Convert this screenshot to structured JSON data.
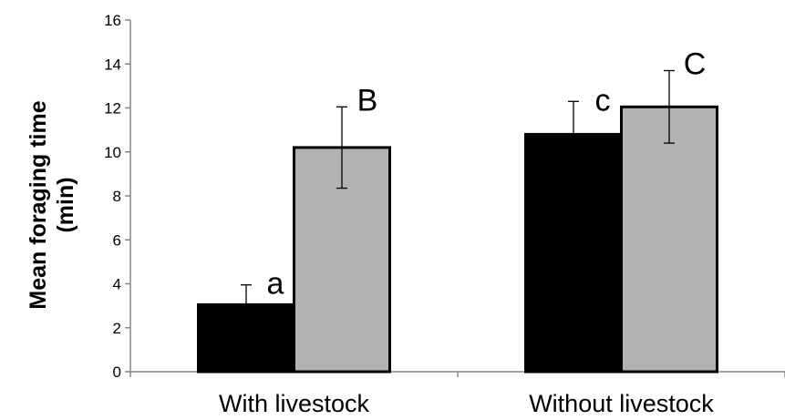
{
  "chart_data": {
    "type": "bar",
    "title": "",
    "xlabel": "",
    "ylabel_lines": [
      "Mean foraging time",
      "(min)"
    ],
    "categories": [
      "With livestock",
      "Without livestock"
    ],
    "series": [
      {
        "color": "#000000",
        "values": [
          3.05,
          10.8
        ],
        "errors": [
          0.9,
          1.5
        ],
        "labels": [
          "a",
          "c"
        ]
      },
      {
        "color": "#b2b2b2",
        "values": [
          10.2,
          12.05
        ],
        "errors": [
          1.85,
          1.65
        ],
        "labels": [
          "B",
          "C"
        ]
      }
    ],
    "ylim": [
      0,
      16
    ],
    "yticks": [
      "0",
      "2",
      "4",
      "6",
      "8",
      "10",
      "12",
      "14",
      "16"
    ],
    "grid": false,
    "legend": "none"
  }
}
